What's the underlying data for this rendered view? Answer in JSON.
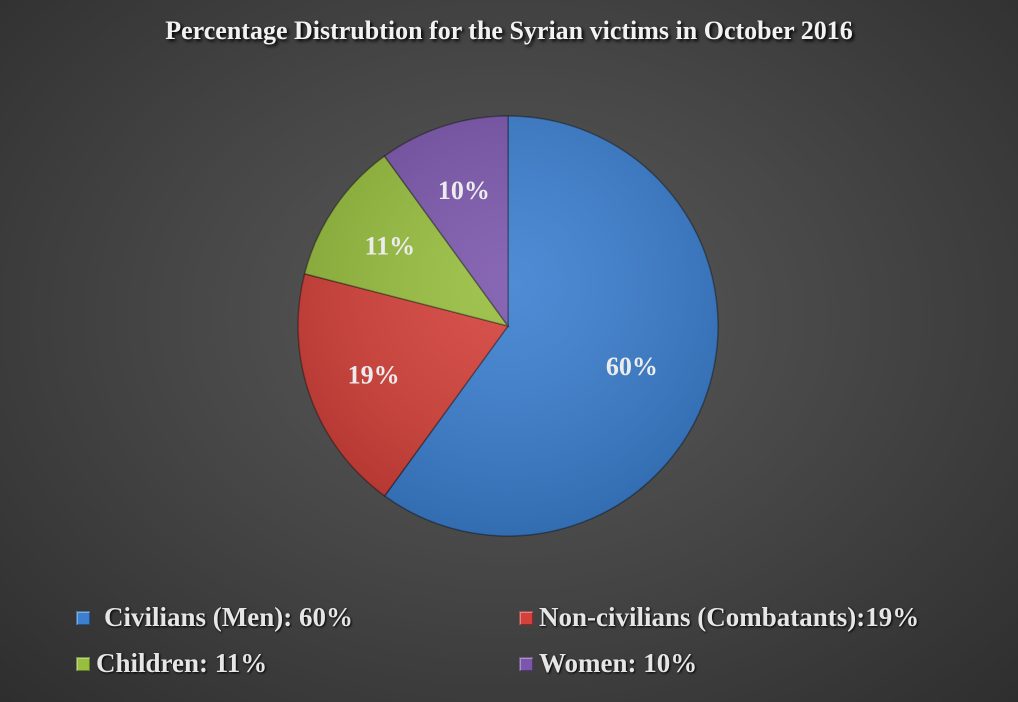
{
  "chart_data": {
    "type": "pie",
    "title": "Percentage Distrubtion for the Syrian victims in October 2016",
    "categories": [
      "Civilians (Men)",
      "Non-civilians (Combatants)",
      "Children",
      "Women"
    ],
    "values": [
      60,
      19,
      11,
      10
    ],
    "unit": "%",
    "colors": [
      "#3b7fd0",
      "#d5413a",
      "#97be3e",
      "#7b56ac"
    ],
    "data_labels": [
      "60%",
      "19%",
      "11%",
      "10%"
    ],
    "start_angle": "12 o'clock",
    "direction": "clockwise",
    "legend_position": "bottom",
    "legend": [
      {
        "label": "Civilians (Men): 60%",
        "color": "#3b7fd0"
      },
      {
        "label": "Non-civilians (Combatants):19%",
        "color": "#d5413a"
      },
      {
        "label": "Children: 11%",
        "color": "#97be3e"
      },
      {
        "label": "Women: 10%",
        "color": "#7b56ac"
      }
    ]
  }
}
